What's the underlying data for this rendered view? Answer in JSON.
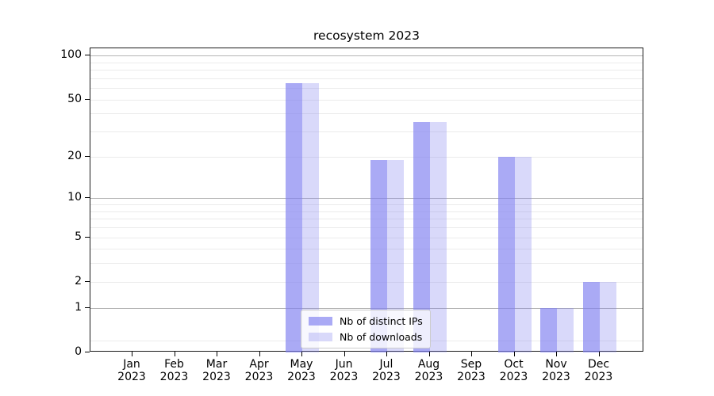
{
  "figure": {
    "title": "recosystem 2023"
  },
  "chart_data": {
    "type": "bar",
    "title": "recosystem 2023",
    "categories": [
      "Jan",
      "Feb",
      "Mar",
      "Apr",
      "May",
      "Jun",
      "Jul",
      "Aug",
      "Sep",
      "Oct",
      "Nov",
      "Dec"
    ],
    "category_year": "2023",
    "series": [
      {
        "name": "Nb of distinct IPs",
        "color": "rgba(128,128,240,0.67)",
        "values": [
          0,
          0,
          0,
          0,
          65,
          0,
          19,
          35,
          0,
          20,
          1,
          2
        ]
      },
      {
        "name": "Nb of downloads",
        "color": "rgba(128,128,240,0.30)",
        "values": [
          0,
          0,
          0,
          0,
          65,
          0,
          19,
          35,
          0,
          20,
          1,
          2
        ]
      }
    ],
    "yscale": "log1p",
    "ylim": [
      0,
      112
    ],
    "y_labeled_ticks": [
      0,
      1,
      2,
      5,
      10,
      20,
      50,
      100
    ],
    "y_major_gridlines": [
      1,
      10,
      100
    ],
    "y_minor_gridlines": [
      0.2,
      2,
      3,
      4,
      5,
      6,
      7,
      8,
      9,
      20,
      30,
      40,
      50,
      60,
      70,
      80,
      90
    ],
    "grid": true,
    "legend": {
      "position": "lower center"
    }
  },
  "colors": {
    "bar_base": "#8080f0",
    "major_grid": "#b4b4b4",
    "minor_grid": "#ebebeb",
    "spine": "#1a1a1a"
  }
}
